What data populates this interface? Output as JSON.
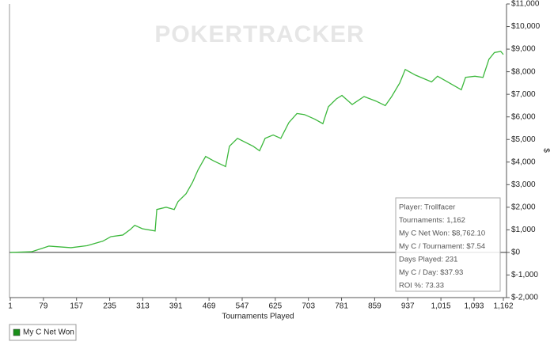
{
  "chart_data": {
    "type": "line",
    "watermark": "POKERTRACKER",
    "xlabel": "Tournaments Played",
    "ylabel": "$",
    "x": [
      1,
      51,
      79,
      92,
      144,
      182,
      219,
      238,
      266,
      284,
      294,
      312,
      342,
      346,
      368,
      387,
      396,
      415,
      430,
      443,
      461,
      480,
      508,
      517,
      536,
      573,
      588,
      601,
      620,
      638,
      657,
      676,
      694,
      718,
      737,
      750,
      769,
      782,
      806,
      834,
      862,
      884,
      899,
      918,
      931,
      955,
      993,
      1007,
      1026,
      1063,
      1073,
      1095,
      1114,
      1128,
      1141,
      1156,
      1162
    ],
    "series": [
      {
        "name": "My C Net Won",
        "color": "#3cb83c",
        "values": [
          0,
          30,
          200,
          280,
          210,
          300,
          500,
          700,
          770,
          1020,
          1200,
          1050,
          950,
          1900,
          2000,
          1900,
          2250,
          2600,
          3100,
          3650,
          4250,
          4050,
          3800,
          4700,
          5050,
          4700,
          4500,
          5050,
          5200,
          5050,
          5750,
          6150,
          6100,
          5900,
          5700,
          6450,
          6800,
          6950,
          6550,
          6900,
          6700,
          6500,
          6900,
          7500,
          8100,
          7850,
          7550,
          7800,
          7600,
          7200,
          7750,
          7800,
          7750,
          8550,
          8850,
          8900,
          8762.1
        ]
      }
    ],
    "xlim": [
      1,
      1162
    ],
    "xticks": [
      1,
      79,
      157,
      235,
      313,
      391,
      469,
      547,
      625,
      703,
      781,
      859,
      937,
      {
        "value": 1015,
        "label": "1,015"
      },
      {
        "value": 1093,
        "label": "1,093"
      },
      {
        "value": 1162,
        "label": "1,162"
      }
    ],
    "ylim": [
      -2000,
      11000
    ],
    "yticks": [
      {
        "value": -2000,
        "label": "$-2,000"
      },
      {
        "value": -1000,
        "label": "$-1,000"
      },
      {
        "value": 0,
        "label": "$0"
      },
      {
        "value": 1000,
        "label": "$1,000"
      },
      {
        "value": 2000,
        "label": "$2,000"
      },
      {
        "value": 3000,
        "label": "$3,000"
      },
      {
        "value": 4000,
        "label": "$4,000"
      },
      {
        "value": 5000,
        "label": "$5,000"
      },
      {
        "value": 6000,
        "label": "$6,000"
      },
      {
        "value": 7000,
        "label": "$7,000"
      },
      {
        "value": 8000,
        "label": "$8,000"
      },
      {
        "value": 9000,
        "label": "$9,000"
      },
      {
        "value": 10000,
        "label": "$10,000"
      },
      {
        "value": 11000,
        "label": "$11,000"
      }
    ],
    "zero_line": true,
    "legend": "bottom-left",
    "annotations": [
      "Player: Trollfacer",
      "Tournaments: 1,162",
      "My C Net Won: $8,762.10",
      "My C / Tournament: $7.54",
      "Days Played: 231",
      "My C / Day: $37.93",
      "ROI %: 73.33"
    ]
  }
}
